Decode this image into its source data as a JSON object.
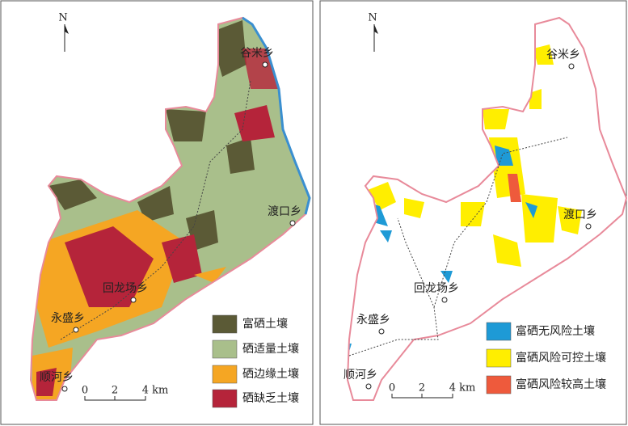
{
  "panels": [
    {
      "north": "N",
      "places": [
        "谷米乡",
        "渡口乡",
        "回龙场乡",
        "永盛乡",
        "顺河乡"
      ],
      "legend": [
        {
          "label": "富硒土壤",
          "color": "#5b5a36"
        },
        {
          "label": "硒适量土壤",
          "color": "#a9bf8b"
        },
        {
          "label": "硒边缘土壤",
          "color": "#f5a623"
        },
        {
          "label": "硒缺乏土壤",
          "color": "#b5243a"
        }
      ],
      "scale": [
        "0",
        "2",
        "4 km"
      ]
    },
    {
      "north": "N",
      "places": [
        "谷米乡",
        "渡口乡",
        "回龙场乡",
        "永盛乡",
        "顺河乡"
      ],
      "legend": [
        {
          "label": "富硒无风险土壤",
          "color": "#1e9ad6"
        },
        {
          "label": "富硒风险可控土壤",
          "color": "#ffee00"
        },
        {
          "label": "富硒风险较高土壤",
          "color": "#ee5a3c"
        }
      ],
      "scale": [
        "0",
        "2",
        "4 km"
      ]
    }
  ]
}
